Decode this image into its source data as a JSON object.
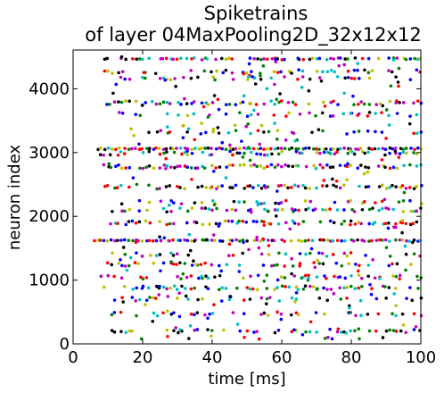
{
  "chart_data": {
    "type": "scatter",
    "title": "Spiketrains",
    "subtitle": "of layer 04MaxPooling2D_32x12x12",
    "xlabel": "time [ms]",
    "ylabel": "neuron index",
    "xlim": [
      0,
      100
    ],
    "ylim": [
      0,
      4608
    ],
    "xticks": [
      "0",
      "20",
      "40",
      "60",
      "80",
      "100"
    ],
    "yticks": [
      "0",
      "1000",
      "2000",
      "3000",
      "4000"
    ],
    "xtick_values": [
      0,
      20,
      40,
      60,
      80,
      100
    ],
    "ytick_values": [
      0,
      1000,
      2000,
      3000,
      4000
    ],
    "grid": false,
    "marker_colors": [
      "#0000ff",
      "#008000",
      "#ff0000",
      "#00bfbf",
      "#bf00bf",
      "#bfbf00",
      "#000000"
    ],
    "bands": [
      {
        "y": 4470,
        "t_start": 9,
        "density": 0.7
      },
      {
        "y": 4270,
        "t_start": 9,
        "density": 0.45
      },
      {
        "y": 4160,
        "t_start": 10,
        "density": 0.3
      },
      {
        "y": 3780,
        "t_start": 10,
        "density": 0.6
      },
      {
        "y": 3600,
        "t_start": 12,
        "density": 0.4
      },
      {
        "y": 3320,
        "t_start": 12,
        "density": 0.3
      },
      {
        "y": 3060,
        "t_start": 7,
        "density": 0.95
      },
      {
        "y": 2990,
        "t_start": 8,
        "density": 0.55
      },
      {
        "y": 2780,
        "t_start": 9,
        "density": 0.8
      },
      {
        "y": 2460,
        "t_start": 9,
        "density": 0.75
      },
      {
        "y": 2220,
        "t_start": 11,
        "density": 0.4
      },
      {
        "y": 2100,
        "t_start": 11,
        "density": 0.55
      },
      {
        "y": 1900,
        "t_start": 11,
        "density": 0.6
      },
      {
        "y": 1620,
        "t_start": 6,
        "density": 0.95
      },
      {
        "y": 1400,
        "t_start": 9,
        "density": 0.35
      },
      {
        "y": 1250,
        "t_start": 10,
        "density": 0.5
      },
      {
        "y": 1050,
        "t_start": 8,
        "density": 0.45
      },
      {
        "y": 880,
        "t_start": 8,
        "density": 0.55
      },
      {
        "y": 700,
        "t_start": 10,
        "density": 0.35
      },
      {
        "y": 470,
        "t_start": 10,
        "density": 0.4
      },
      {
        "y": 200,
        "t_start": 11,
        "density": 0.45
      }
    ]
  }
}
